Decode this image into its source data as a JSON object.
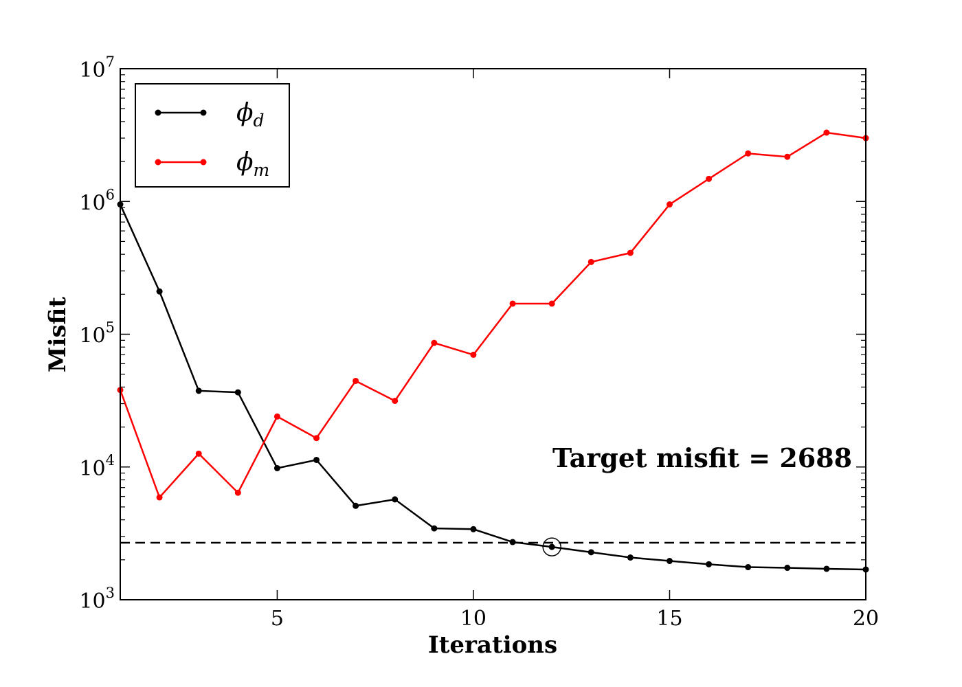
{
  "chart_data": {
    "type": "line",
    "title": "",
    "xlabel": "Iterations",
    "ylabel": "Misfit",
    "xlim": [
      1,
      20
    ],
    "ylim": [
      1000,
      10000000
    ],
    "yscale": "log",
    "grid": false,
    "legend_position": "top-left",
    "x_ticks": [
      5,
      10,
      15,
      20
    ],
    "y_ticks": [
      {
        "value": 1000,
        "base": "10",
        "exp": "3"
      },
      {
        "value": 10000,
        "base": "10",
        "exp": "4"
      },
      {
        "value": 100000,
        "base": "10",
        "exp": "5"
      },
      {
        "value": 1000000,
        "base": "10",
        "exp": "6"
      },
      {
        "value": 10000000,
        "base": "10",
        "exp": "7"
      }
    ],
    "x": [
      1,
      2,
      3,
      4,
      5,
      6,
      7,
      8,
      9,
      10,
      11,
      12,
      13,
      14,
      15,
      16,
      17,
      18,
      19,
      20
    ],
    "series": [
      {
        "name": "ϕ",
        "subscript": "d",
        "color": "#000000",
        "values": [
          950000,
          210000,
          37500,
          36500,
          9800,
          11300,
          5100,
          5700,
          3450,
          3400,
          2720,
          2500,
          2280,
          2080,
          1960,
          1850,
          1760,
          1740,
          1710,
          1690
        ]
      },
      {
        "name": "ϕ",
        "subscript": "m",
        "color": "#ff0000",
        "values": [
          38000,
          5900,
          12600,
          6400,
          24000,
          16500,
          44500,
          31500,
          86000,
          70000,
          170000,
          170000,
          350000,
          410000,
          950000,
          1480000,
          2300000,
          2170000,
          3300000,
          3000000
        ]
      }
    ],
    "target": {
      "value": 2688,
      "label": "Target misfit = 2688",
      "color": "#000000",
      "style": "dashed"
    },
    "highlight": {
      "x": 12,
      "y": 2500
    }
  }
}
